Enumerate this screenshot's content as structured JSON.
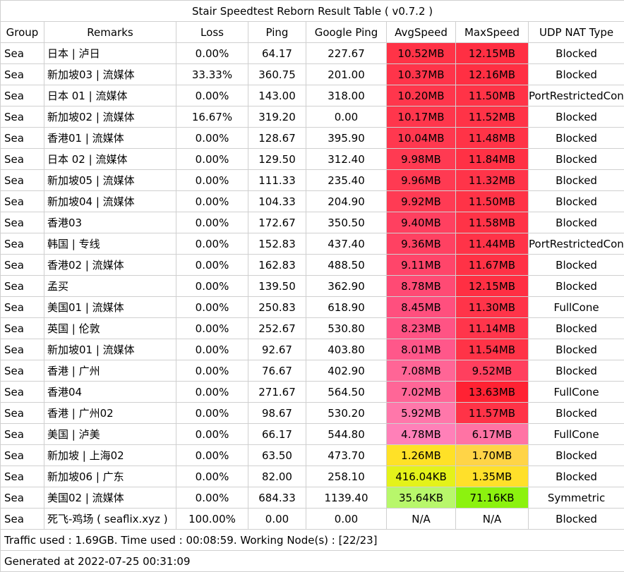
{
  "title": "Stair Speedtest Reborn Result Table ( v0.7.2 )",
  "headers": [
    "Group",
    "Remarks",
    "Loss",
    "Ping",
    "Google Ping",
    "AvgSpeed",
    "MaxSpeed",
    "UDP NAT Type"
  ],
  "rows": [
    {
      "group": "Sea",
      "remarks": "日本 | 泸日",
      "loss": "0.00%",
      "ping": "64.17",
      "gping": "227.67",
      "avg": "10.52MB",
      "avg_color": "#ff3347",
      "max": "12.15MB",
      "max_color": "#ff2f43",
      "nat": "Blocked"
    },
    {
      "group": "Sea",
      "remarks": "新加坡03 | 流媒体",
      "loss": "33.33%",
      "ping": "360.75",
      "gping": "201.00",
      "avg": "10.37MB",
      "avg_color": "#ff344a",
      "max": "12.16MB",
      "max_color": "#ff2f43",
      "nat": "Blocked"
    },
    {
      "group": "Sea",
      "remarks": "日本 01 | 流媒体",
      "loss": "0.00%",
      "ping": "143.00",
      "gping": "318.00",
      "avg": "10.20MB",
      "avg_color": "#ff364c",
      "max": "11.50MB",
      "max_color": "#ff3347",
      "nat": "PortRestrictedCone"
    },
    {
      "group": "Sea",
      "remarks": "新加坡02 | 流媒体",
      "loss": "16.67%",
      "ping": "319.20",
      "gping": "0.00",
      "avg": "10.17MB",
      "avg_color": "#ff364c",
      "max": "11.52MB",
      "max_color": "#ff3347",
      "nat": "Blocked"
    },
    {
      "group": "Sea",
      "remarks": "香港01 | 流媒体",
      "loss": "0.00%",
      "ping": "128.67",
      "gping": "395.90",
      "avg": "10.04MB",
      "avg_color": "#ff384f",
      "max": "11.48MB",
      "max_color": "#ff3347",
      "nat": "Blocked"
    },
    {
      "group": "Sea",
      "remarks": "日本 02 | 流媒体",
      "loss": "0.00%",
      "ping": "129.50",
      "gping": "312.40",
      "avg": "9.98MB",
      "avg_color": "#ff3a52",
      "max": "11.84MB",
      "max_color": "#ff3145",
      "nat": "Blocked"
    },
    {
      "group": "Sea",
      "remarks": "新加坡05 | 流媒体",
      "loss": "0.00%",
      "ping": "111.33",
      "gping": "235.40",
      "avg": "9.96MB",
      "avg_color": "#ff3a52",
      "max": "11.32MB",
      "max_color": "#ff3449",
      "nat": "Blocked"
    },
    {
      "group": "Sea",
      "remarks": "新加坡04 | 流媒体",
      "loss": "0.00%",
      "ping": "104.33",
      "gping": "204.90",
      "avg": "9.92MB",
      "avg_color": "#ff3b54",
      "max": "11.50MB",
      "max_color": "#ff3347",
      "nat": "Blocked"
    },
    {
      "group": "Sea",
      "remarks": "香港03",
      "loss": "0.00%",
      "ping": "172.67",
      "gping": "350.50",
      "avg": "9.40MB",
      "avg_color": "#ff4060",
      "max": "11.58MB",
      "max_color": "#ff3347",
      "nat": "Blocked"
    },
    {
      "group": "Sea",
      "remarks": "韩国 | 专线",
      "loss": "0.00%",
      "ping": "152.83",
      "gping": "437.40",
      "avg": "9.36MB",
      "avg_color": "#ff4162",
      "max": "11.44MB",
      "max_color": "#ff3348",
      "nat": "PortRestrictedCone"
    },
    {
      "group": "Sea",
      "remarks": "香港02 | 流媒体",
      "loss": "0.00%",
      "ping": "162.83",
      "gping": "488.50",
      "avg": "9.11MB",
      "avg_color": "#ff456a",
      "max": "11.67MB",
      "max_color": "#ff3246",
      "nat": "Blocked"
    },
    {
      "group": "Sea",
      "remarks": "孟买",
      "loss": "0.00%",
      "ping": "139.50",
      "gping": "362.90",
      "avg": "8.78MB",
      "avg_color": "#ff4a74",
      "max": "12.15MB",
      "max_color": "#ff2f43",
      "nat": "Blocked"
    },
    {
      "group": "Sea",
      "remarks": "美国01 | 流媒体",
      "loss": "0.00%",
      "ping": "250.83",
      "gping": "618.90",
      "avg": "8.45MB",
      "avg_color": "#ff4f7e",
      "max": "11.30MB",
      "max_color": "#ff3449",
      "nat": "FullCone"
    },
    {
      "group": "Sea",
      "remarks": "英国 | 伦敦",
      "loss": "0.00%",
      "ping": "252.67",
      "gping": "530.80",
      "avg": "8.23MB",
      "avg_color": "#ff5384",
      "max": "11.14MB",
      "max_color": "#ff354b",
      "nat": "Blocked"
    },
    {
      "group": "Sea",
      "remarks": "新加坡01 | 流媒体",
      "loss": "0.00%",
      "ping": "92.67",
      "gping": "403.80",
      "avg": "8.01MB",
      "avg_color": "#ff578a",
      "max": "11.54MB",
      "max_color": "#ff3347",
      "nat": "Blocked"
    },
    {
      "group": "Sea",
      "remarks": "香港 | 广州",
      "loss": "0.00%",
      "ping": "76.67",
      "gping": "402.90",
      "avg": "7.08MB",
      "avg_color": "#ff6596",
      "max": "9.52MB",
      "max_color": "#ff3f5e",
      "nat": "Blocked"
    },
    {
      "group": "Sea",
      "remarks": "香港04",
      "loss": "0.00%",
      "ping": "271.67",
      "gping": "564.50",
      "avg": "7.02MB",
      "avg_color": "#ff6697",
      "max": "13.63MB",
      "max_color": "#ff2233",
      "nat": "FullCone"
    },
    {
      "group": "Sea",
      "remarks": "香港 | 广州02",
      "loss": "0.00%",
      "ping": "98.67",
      "gping": "530.20",
      "avg": "5.92MB",
      "avg_color": "#ff77aa",
      "max": "11.57MB",
      "max_color": "#ff3347",
      "nat": "Blocked"
    },
    {
      "group": "Sea",
      "remarks": "美国 | 泸美",
      "loss": "0.00%",
      "ping": "66.17",
      "gping": "544.80",
      "avg": "4.78MB",
      "avg_color": "#ff80b8",
      "max": "6.17MB",
      "max_color": "#ff73a4",
      "nat": "FullCone"
    },
    {
      "group": "Sea",
      "remarks": "新加坡 | 上海02",
      "loss": "0.00%",
      "ping": "63.50",
      "gping": "473.70",
      "avg": "1.26MB",
      "avg_color": "#ffe127",
      "max": "1.70MB",
      "max_color": "#ffd447",
      "nat": "Blocked"
    },
    {
      "group": "Sea",
      "remarks": "新加坡06 | 广东",
      "loss": "0.00%",
      "ping": "82.00",
      "gping": "258.10",
      "avg": "416.04KB",
      "avg_color": "#e4f21a",
      "max": "1.35MB",
      "max_color": "#ffe02a",
      "nat": "Blocked"
    },
    {
      "group": "Sea",
      "remarks": "美国02 | 流媒体",
      "loss": "0.00%",
      "ping": "684.33",
      "gping": "1139.40",
      "avg": "35.64KB",
      "avg_color": "#b8f76b",
      "max": "71.16KB",
      "max_color": "#8cf20f",
      "nat": "Symmetric"
    },
    {
      "group": "Sea",
      "remarks": "死飞-鸡场 ( seaflix.xyz )",
      "loss": "100.00%",
      "ping": "0.00",
      "gping": "0.00",
      "avg": "N/A",
      "avg_color": "#ffffff",
      "max": "N/A",
      "max_color": "#ffffff",
      "nat": "Blocked"
    }
  ],
  "footer_traffic": "Traffic used : 1.69GB. Time used : 00:08:59. Working Node(s) : [22/23]",
  "footer_generated": "Generated at 2022-07-25 00:31:09"
}
